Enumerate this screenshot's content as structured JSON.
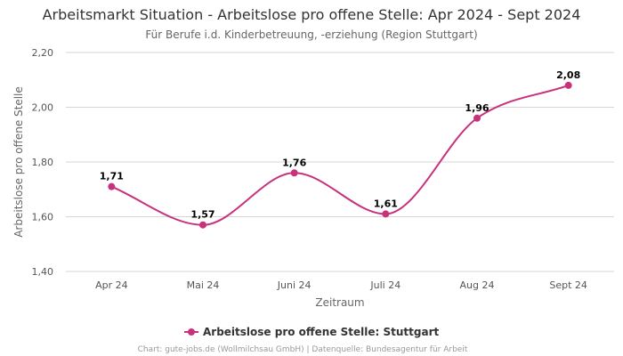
{
  "chart_data": {
    "type": "line",
    "title": "Arbeitsmarkt Situation - Arbeitslose pro offene Stelle: Apr 2024 - Sept 2024",
    "subtitle": "Für Berufe i.d. Kinderbetreuung, -erziehung (Region Stuttgart)",
    "xlabel": "Zeitraum",
    "ylabel": "Arbeitslose pro offene Stelle",
    "categories": [
      "Apr 24",
      "Mai 24",
      "Juni 24",
      "Juli 24",
      "Aug 24",
      "Sept 24"
    ],
    "series": [
      {
        "name": "Arbeitslose pro offene Stelle: Stuttgart",
        "values": [
          1.71,
          1.57,
          1.76,
          1.61,
          1.96,
          2.08
        ],
        "labels": [
          "1,71",
          "1,57",
          "1,76",
          "1,61",
          "1,96",
          "2,08"
        ],
        "color": "#c8317c"
      }
    ],
    "ylim": [
      1.4,
      2.2
    ],
    "yticks": [
      1.4,
      1.6,
      1.8,
      2.0,
      2.2
    ],
    "ytick_labels": [
      "1,40",
      "1,60",
      "1,80",
      "2,00",
      "2,20"
    ],
    "grid": true,
    "legend_position": "bottom-center"
  },
  "credits": "Chart: gute-jobs.de (Wollmilchsau GmbH) | Datenquelle: Bundesagentur für Arbeit"
}
